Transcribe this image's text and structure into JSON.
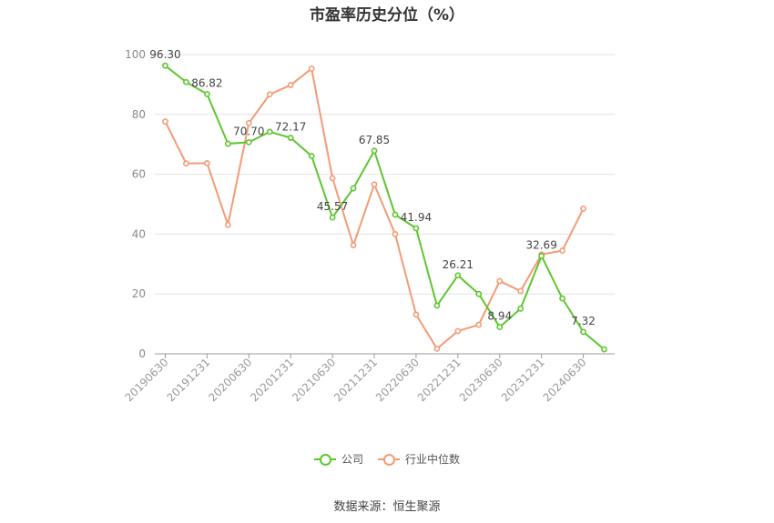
{
  "colors": {
    "company": "#5ec62f",
    "industry": "#f39b76",
    "grid": "#e3e3e3",
    "axis": "#999999"
  },
  "source": "数据来源：恒生聚源",
  "chart_data": {
    "type": "line",
    "title": "市盈率历史分位（%）",
    "xlabel": "",
    "ylabel": "",
    "ylim": [
      0,
      100
    ],
    "yticks": [
      0,
      20,
      40,
      60,
      80,
      100
    ],
    "grid": true,
    "legend_position": "bottom",
    "categories": [
      "20190630",
      "20190930",
      "20191231",
      "20200331",
      "20200630",
      "20200930",
      "20201231",
      "20210331",
      "20210630",
      "20210930",
      "20211231",
      "20220331",
      "20220630",
      "20220930",
      "20221231",
      "20230331",
      "20230630",
      "20230930",
      "20231231",
      "20240331",
      "20240630",
      "20240930"
    ],
    "tick_labels": [
      "20190630",
      "20191231",
      "20200630",
      "20201231",
      "20210630",
      "20211231",
      "20220630",
      "20221231",
      "20230630",
      "20231231",
      "20240630"
    ],
    "series": [
      {
        "name": "公司",
        "values": [
          96.3,
          90.8,
          86.82,
          70.2,
          70.7,
          74.2,
          72.17,
          66.1,
          45.57,
          55.3,
          67.85,
          46.5,
          41.94,
          16.1,
          26.21,
          20.0,
          8.94,
          15.1,
          32.69,
          18.5,
          7.32,
          1.5
        ],
        "labels": [
          "96.30",
          null,
          "86.82",
          null,
          "70.70",
          null,
          "72.17",
          null,
          "45.57",
          null,
          "67.85",
          null,
          "41.94",
          null,
          "26.21",
          null,
          "8.94",
          null,
          "32.69",
          null,
          "7.32",
          null
        ]
      },
      {
        "name": "行业中位数",
        "values": [
          77.6,
          63.6,
          63.7,
          43.1,
          77.1,
          86.7,
          89.8,
          95.3,
          58.7,
          36.3,
          56.6,
          40.0,
          13.1,
          1.7,
          7.6,
          9.7,
          24.3,
          21.0,
          33.2,
          34.5,
          48.5,
          null
        ]
      }
    ]
  }
}
